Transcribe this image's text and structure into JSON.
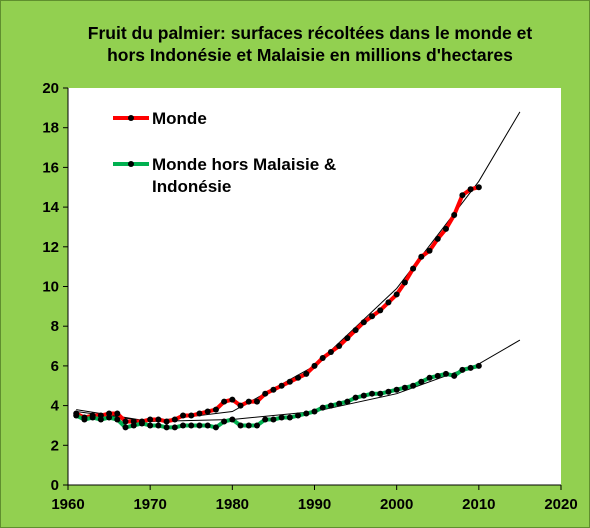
{
  "chart_data": {
    "type": "line",
    "title_lines": [
      "Fruit du palmier: surfaces récoltées dans le monde et",
      "hors Indonésie et Malaisie en millions d'hectares"
    ],
    "xlabel": "",
    "ylabel": "",
    "xlim": [
      1960,
      2020
    ],
    "ylim": [
      0,
      20
    ],
    "x_ticks": [
      1960,
      1970,
      1980,
      1990,
      2000,
      2010,
      2020
    ],
    "y_ticks": [
      0,
      2,
      4,
      6,
      8,
      10,
      12,
      14,
      16,
      18,
      20
    ],
    "grid": false,
    "legend_position": "top-left",
    "x": [
      1961,
      1962,
      1963,
      1964,
      1965,
      1966,
      1967,
      1968,
      1969,
      1970,
      1971,
      1972,
      1973,
      1974,
      1975,
      1976,
      1977,
      1978,
      1979,
      1980,
      1981,
      1982,
      1983,
      1984,
      1985,
      1986,
      1987,
      1988,
      1989,
      1990,
      1991,
      1992,
      1993,
      1994,
      1995,
      1996,
      1997,
      1998,
      1999,
      2000,
      2001,
      2002,
      2003,
      2004,
      2005,
      2006,
      2007,
      2008,
      2009,
      2010
    ],
    "series": [
      {
        "name": "Monde",
        "color": "#ff0000",
        "values": [
          3.6,
          3.4,
          3.5,
          3.5,
          3.6,
          3.6,
          3.2,
          3.2,
          3.2,
          3.3,
          3.3,
          3.2,
          3.3,
          3.5,
          3.5,
          3.6,
          3.7,
          3.8,
          4.2,
          4.3,
          4.0,
          4.2,
          4.2,
          4.6,
          4.8,
          5.0,
          5.2,
          5.4,
          5.6,
          6.0,
          6.4,
          6.7,
          7.0,
          7.4,
          7.8,
          8.2,
          8.5,
          8.8,
          9.2,
          9.6,
          10.2,
          10.9,
          11.5,
          11.8,
          12.4,
          12.9,
          13.6,
          14.6,
          14.9,
          15.0
        ]
      },
      {
        "name": "Monde hors Malaisie & Indonésie",
        "color": "#00b050",
        "values": [
          3.5,
          3.3,
          3.4,
          3.3,
          3.4,
          3.3,
          2.9,
          3.0,
          3.1,
          3.0,
          3.0,
          2.9,
          2.9,
          3.0,
          3.0,
          3.0,
          3.0,
          2.9,
          3.2,
          3.3,
          3.0,
          3.0,
          3.0,
          3.3,
          3.3,
          3.4,
          3.4,
          3.5,
          3.6,
          3.7,
          3.9,
          4.0,
          4.1,
          4.2,
          4.4,
          4.5,
          4.6,
          4.6,
          4.7,
          4.8,
          4.9,
          5.0,
          5.2,
          5.4,
          5.5,
          5.6,
          5.5,
          5.8,
          5.9,
          6.0
        ]
      }
    ],
    "trendlines": [
      {
        "color": "#000000",
        "x": [
          1961,
          1970,
          1980,
          1990,
          2000,
          2010,
          2015
        ],
        "values": [
          3.7,
          3.2,
          3.7,
          6.0,
          9.9,
          15.3,
          18.8
        ]
      },
      {
        "color": "#000000",
        "x": [
          1961,
          1970,
          1980,
          1990,
          2000,
          2010,
          2015
        ],
        "values": [
          3.8,
          3.2,
          3.3,
          3.7,
          4.6,
          6.1,
          7.3
        ]
      }
    ]
  }
}
